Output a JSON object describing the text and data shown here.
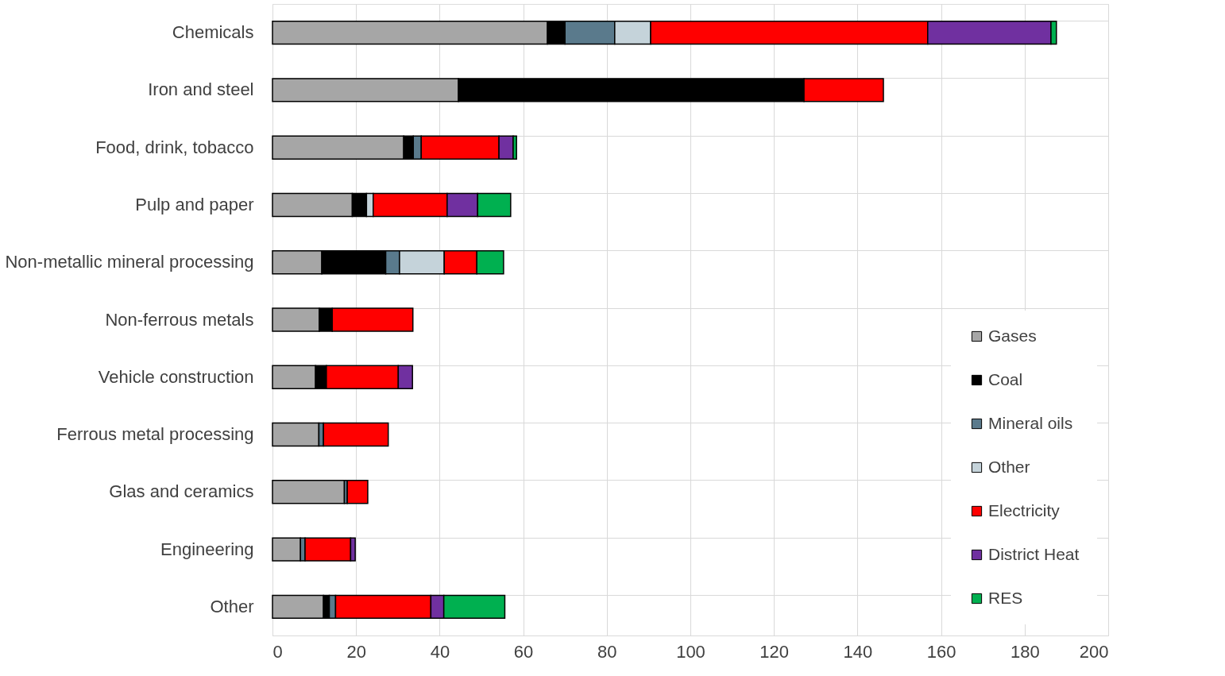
{
  "chart_data": {
    "type": "bar",
    "orientation": "horizontal",
    "stacked": true,
    "categories": [
      "Chemicals",
      "Iron and steel",
      "Food, drink, tobacco",
      "Pulp and paper",
      "Non-metallic mineral processing",
      "Non-ferrous metals",
      "Vehicle construction",
      "Ferrous metal processing",
      "Glas and ceramics",
      "Engineering",
      "Other"
    ],
    "series": [
      {
        "name": "Gases",
        "color": "#a6a6a6",
        "values": [
          65.8,
          44.5,
          31.4,
          19.1,
          11.8,
          11.2,
          10.3,
          11.1,
          17.2,
          6.7,
          12.2
        ]
      },
      {
        "name": "Coal",
        "color": "#000000",
        "values": [
          4.2,
          82.7,
          2.3,
          3.4,
          15.3,
          3.1,
          2.6,
          null,
          null,
          null,
          1.4
        ]
      },
      {
        "name": "Mineral oils",
        "color": "#5a7a8c",
        "values": [
          11.9,
          null,
          1.9,
          null,
          3.3,
          null,
          null,
          1.1,
          0.7,
          1.1,
          1.5
        ]
      },
      {
        "name": "Other",
        "color": "#c5d3da",
        "values": [
          8.6,
          null,
          null,
          1.6,
          10.7,
          null,
          null,
          null,
          null,
          null,
          null
        ]
      },
      {
        "name": "Electricity",
        "color": "#ff0000",
        "values": [
          66.3,
          19.0,
          18.6,
          17.7,
          7.8,
          19.3,
          17.2,
          15.5,
          4.9,
          10.9,
          22.8
        ]
      },
      {
        "name": "District Heat",
        "color": "#7030a0",
        "values": [
          29.5,
          null,
          3.4,
          7.3,
          null,
          null,
          3.4,
          null,
          null,
          1.1,
          3.1
        ]
      },
      {
        "name": "RES",
        "color": "#00b050",
        "values": [
          1.3,
          null,
          0.8,
          7.9,
          6.4,
          null,
          null,
          null,
          null,
          null,
          14.6
        ]
      }
    ],
    "xlim": [
      0,
      200
    ],
    "xticks": [
      0,
      20,
      40,
      60,
      80,
      100,
      120,
      140,
      160,
      180,
      200
    ],
    "grid": true,
    "legend": "bottom right"
  }
}
